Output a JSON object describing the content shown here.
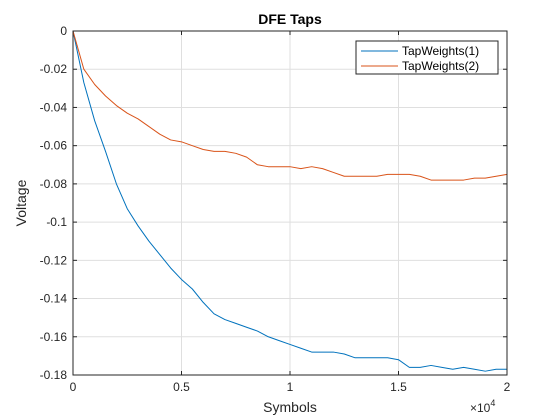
{
  "chart_data": {
    "type": "line",
    "title": "DFE Taps",
    "xlabel": "Symbols",
    "ylabel": "Voltage",
    "x_multiplier_base": "×10",
    "x_multiplier_exp": "4",
    "xlim": [
      0,
      20000
    ],
    "ylim": [
      -0.18,
      0
    ],
    "grid": true,
    "legend_position": "top-right",
    "x_ticks": [
      0,
      5000,
      10000,
      15000,
      20000
    ],
    "x_tick_labels": [
      "0",
      "0.5",
      "1",
      "1.5",
      "2"
    ],
    "y_ticks": [
      0,
      -0.02,
      -0.04,
      -0.06,
      -0.08,
      -0.1,
      -0.12,
      -0.14,
      -0.16,
      -0.18
    ],
    "y_tick_labels": [
      "0",
      "-0.02",
      "-0.04",
      "-0.06",
      "-0.08",
      "-0.1",
      "-0.12",
      "-0.14",
      "-0.16",
      "-0.18"
    ],
    "x": [
      0,
      500,
      1000,
      1500,
      2000,
      2500,
      3000,
      3500,
      4000,
      4500,
      5000,
      5500,
      6000,
      6500,
      7000,
      7500,
      8000,
      8500,
      9000,
      9500,
      10000,
      10500,
      11000,
      11500,
      12000,
      12500,
      13000,
      13500,
      14000,
      14500,
      15000,
      15500,
      16000,
      16500,
      17000,
      17500,
      18000,
      18500,
      19000,
      19500,
      20000
    ],
    "series": [
      {
        "name": "TapWeights(1)",
        "color": "#0072BD",
        "values": [
          0,
          -0.027,
          -0.047,
          -0.063,
          -0.08,
          -0.093,
          -0.102,
          -0.11,
          -0.117,
          -0.124,
          -0.13,
          -0.135,
          -0.142,
          -0.148,
          -0.151,
          -0.153,
          -0.155,
          -0.157,
          -0.16,
          -0.162,
          -0.164,
          -0.166,
          -0.168,
          -0.168,
          -0.168,
          -0.169,
          -0.171,
          -0.171,
          -0.171,
          -0.171,
          -0.172,
          -0.176,
          -0.176,
          -0.175,
          -0.176,
          -0.177,
          -0.176,
          -0.177,
          -0.178,
          -0.177,
          -0.177
        ]
      },
      {
        "name": "TapWeights(2)",
        "color": "#D95319",
        "values": [
          0,
          -0.02,
          -0.028,
          -0.034,
          -0.039,
          -0.043,
          -0.046,
          -0.05,
          -0.054,
          -0.057,
          -0.058,
          -0.06,
          -0.062,
          -0.063,
          -0.063,
          -0.064,
          -0.066,
          -0.07,
          -0.071,
          -0.071,
          -0.071,
          -0.072,
          -0.071,
          -0.072,
          -0.074,
          -0.076,
          -0.076,
          -0.076,
          -0.076,
          -0.075,
          -0.075,
          -0.075,
          -0.076,
          -0.078,
          -0.078,
          -0.078,
          -0.078,
          -0.077,
          -0.077,
          -0.076,
          -0.075
        ]
      }
    ]
  }
}
